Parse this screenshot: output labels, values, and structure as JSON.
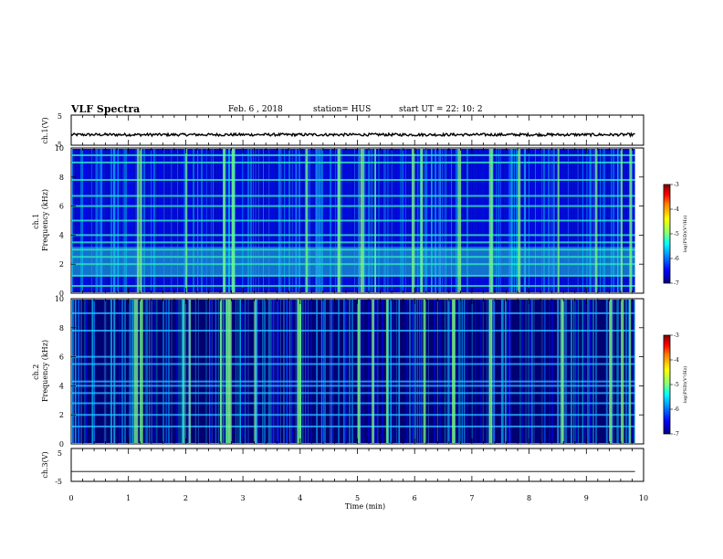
{
  "header": {
    "title": "VLF Spectra",
    "date": "Feb. 6  , 2018",
    "station": "station= HUS",
    "start_ut": "start  UT  =   22: 10: 2"
  },
  "colors": {
    "spectrogram_colormap": [
      "#00007f",
      "#0000ff",
      "#00a0ff",
      "#00ffff",
      "#7fff7f",
      "#ffff00",
      "#ff8000",
      "#ff0000",
      "#7f0000"
    ],
    "trace": "#000000"
  },
  "chart_data": [
    {
      "type": "line",
      "panel": "ch1-voltage",
      "ylabel": "ch.1(V)",
      "ylim": [
        -5,
        5
      ],
      "yticks": [
        "5",
        "-5"
      ],
      "xlim": [
        0,
        10
      ],
      "series": [
        {
          "x": [
            0,
            9.85
          ],
          "values": [
            -1.5,
            -1.5
          ]
        }
      ]
    },
    {
      "type": "heatmap",
      "panel": "ch1-spectrogram",
      "ylabel": "ch.1\nFrequency  (kHz)",
      "ylim": [
        0,
        10
      ],
      "yticks": [
        "0",
        "2",
        "4",
        "6",
        "8",
        "10"
      ],
      "xlim": [
        0,
        9.85
      ],
      "colorbar": {
        "label": "log(PSD)(V²/Hz)",
        "range": [
          -7,
          -3
        ],
        "ticks": [
          "-3",
          "-4",
          "-5",
          "-6",
          "-7"
        ]
      },
      "band_lines_khz": [
        0.5,
        1.2,
        2.0,
        2.5,
        3.0,
        3.5,
        4.0,
        5.0,
        6.0,
        6.7,
        7.8,
        9.0,
        9.5
      ],
      "burst_times_min": [
        1.15,
        1.2,
        2.0,
        2.65,
        2.8,
        4.1,
        4.65,
        5.05,
        5.3,
        5.95,
        6.1,
        6.75,
        7.3,
        7.8,
        8.5,
        9.15,
        9.6,
        9.75
      ]
    },
    {
      "type": "heatmap",
      "panel": "ch2-spectrogram",
      "ylabel": "ch.2\nFrequency  (kHz)",
      "ylim": [
        0,
        10
      ],
      "yticks": [
        "0",
        "2",
        "4",
        "6",
        "8",
        "10"
      ],
      "xlim": [
        0,
        9.85
      ],
      "colorbar": {
        "label": "log(PSD)(V²/Hz)",
        "range": [
          -7,
          -3
        ],
        "ticks": [
          "-3",
          "-4",
          "-5",
          "-6",
          "-7"
        ]
      },
      "band_lines_khz": [
        1.2,
        2.0,
        2.8,
        3.5,
        4.0,
        4.3,
        5.5,
        6.0,
        7.8,
        9.0
      ],
      "burst_times_min": [
        1.1,
        1.2,
        1.95,
        2.05,
        2.6,
        2.7,
        2.75,
        3.2,
        3.95,
        5.0,
        5.25,
        5.5,
        6.15,
        6.65,
        7.3,
        8.55,
        9.4,
        9.6,
        9.75
      ]
    },
    {
      "type": "line",
      "panel": "ch3-voltage",
      "ylabel": "ch.3(V)",
      "ylim": [
        -5,
        5
      ],
      "yticks": [
        "5",
        "-5"
      ],
      "xlim": [
        0,
        10
      ],
      "xlabel": "Time  (min)",
      "xticks": [
        "0",
        "1",
        "2",
        "3",
        "4",
        "5",
        "6",
        "7",
        "8",
        "9",
        "10"
      ],
      "series": [
        {
          "x": [
            0,
            9.85
          ],
          "values": [
            -2.0,
            -2.0
          ]
        }
      ]
    }
  ]
}
